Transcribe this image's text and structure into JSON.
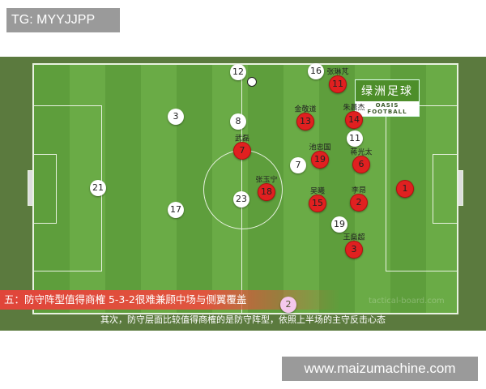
{
  "top_tag": "TG: MYYJJPP",
  "site_tag": "www.maizumachine.com",
  "logo": {
    "cn": "绿洲足球",
    "en": "OASIS FOOTBALL"
  },
  "watermark": "tactical-board.com",
  "banner": "五：防守阵型值得商榷 5-3-2很难兼顾中场与侧翼覆盖",
  "subtitle": "其次，防守层面比较值得商榷的是防守阵型，依照上半场的主守反击心态",
  "white_players": [
    "12",
    "16",
    "3",
    "8",
    "11",
    "7",
    "21",
    "23",
    "17",
    "19"
  ],
  "pink_player": "2",
  "red_players": [
    {
      "num": "11",
      "name": "张琳芃"
    },
    {
      "num": "13",
      "name": "金敬道"
    },
    {
      "num": "14",
      "name": "朱晨杰"
    },
    {
      "num": "7",
      "name": "武磊"
    },
    {
      "num": "19",
      "name": "池忠国"
    },
    {
      "num": "6",
      "name": "蒋光太"
    },
    {
      "num": "18",
      "name": "张玉宁"
    },
    {
      "num": "15",
      "name": "吴曦"
    },
    {
      "num": "2",
      "name": "李昂"
    },
    {
      "num": "3",
      "name": "王燊超"
    },
    {
      "num": "1",
      "name": ""
    }
  ]
}
